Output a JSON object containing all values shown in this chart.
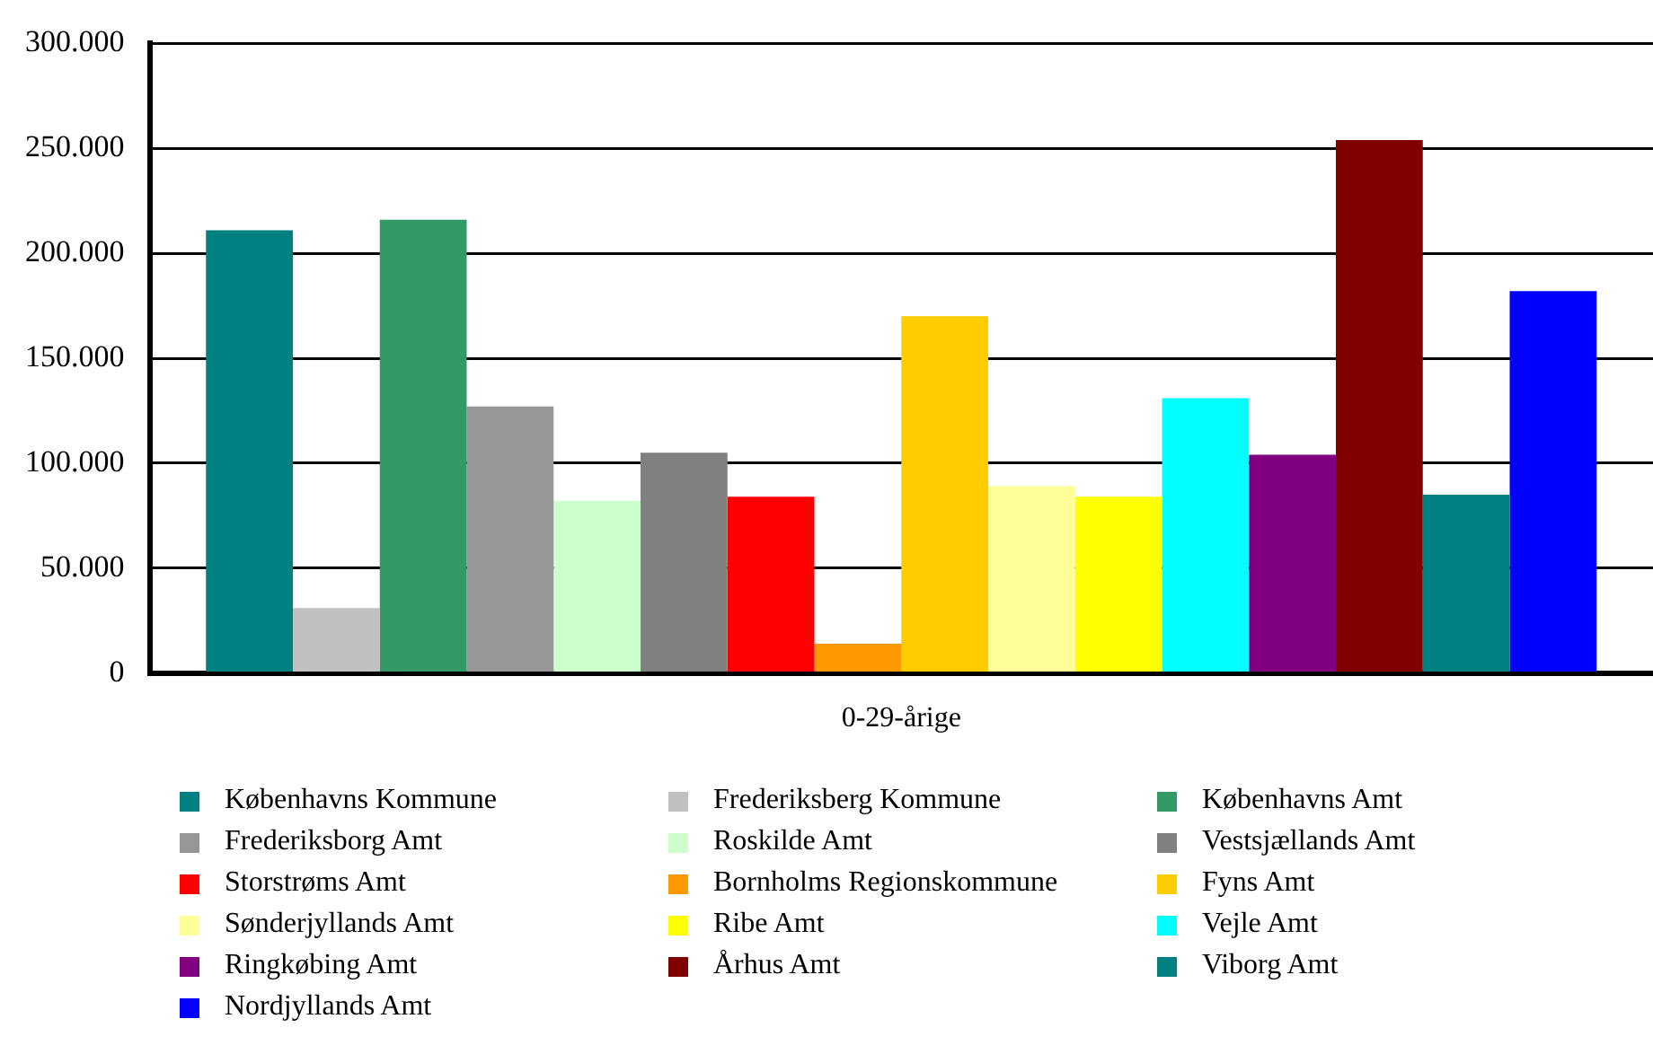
{
  "chart_data": {
    "type": "bar",
    "categories": [
      "0-29-årige"
    ],
    "series": [
      {
        "name": "Københavns Kommune",
        "color": "#008080",
        "values": [
          211000
        ]
      },
      {
        "name": "Frederiksberg Kommune",
        "color": "#c0c0c0",
        "values": [
          31000
        ]
      },
      {
        "name": "Københavns Amt",
        "color": "#339966",
        "values": [
          216000
        ]
      },
      {
        "name": "Frederiksborg Amt",
        "color": "#969696",
        "values": [
          127000
        ]
      },
      {
        "name": "Roskilde Amt",
        "color": "#ccffcc",
        "values": [
          82000
        ]
      },
      {
        "name": "Vestsjællands Amt",
        "color": "#808080",
        "values": [
          105000
        ]
      },
      {
        "name": "Storstrøms Amt",
        "color": "#ff0000",
        "values": [
          84000
        ]
      },
      {
        "name": "Bornholms Regionskommune",
        "color": "#ff9900",
        "values": [
          14000
        ]
      },
      {
        "name": "Fyns Amt",
        "color": "#ffcc00",
        "values": [
          170000
        ]
      },
      {
        "name": "Sønderjyllands Amt",
        "color": "#ffff99",
        "values": [
          89000
        ]
      },
      {
        "name": "Ribe Amt",
        "color": "#ffff00",
        "values": [
          84000
        ]
      },
      {
        "name": "Vejle Amt",
        "color": "#00ffff",
        "values": [
          131000
        ]
      },
      {
        "name": "Ringkøbing Amt",
        "color": "#800080",
        "values": [
          104000
        ]
      },
      {
        "name": "Århus Amt",
        "color": "#800000",
        "values": [
          254000
        ]
      },
      {
        "name": "Viborg Amt",
        "color": "#008080",
        "values": [
          85000
        ]
      },
      {
        "name": "Nordjyllands Amt",
        "color": "#0000ff",
        "values": [
          182000
        ]
      }
    ],
    "ylim": [
      0,
      300000
    ],
    "yticks": [
      {
        "value": 0,
        "label": "0"
      },
      {
        "value": 50000,
        "label": "50.000"
      },
      {
        "value": 100000,
        "label": "100.000"
      },
      {
        "value": 150000,
        "label": "150.000"
      },
      {
        "value": 200000,
        "label": "200.000"
      },
      {
        "value": 250000,
        "label": "250.000"
      },
      {
        "value": 300000,
        "label": "300.000"
      }
    ],
    "grid": "y",
    "legend": "bottom"
  }
}
